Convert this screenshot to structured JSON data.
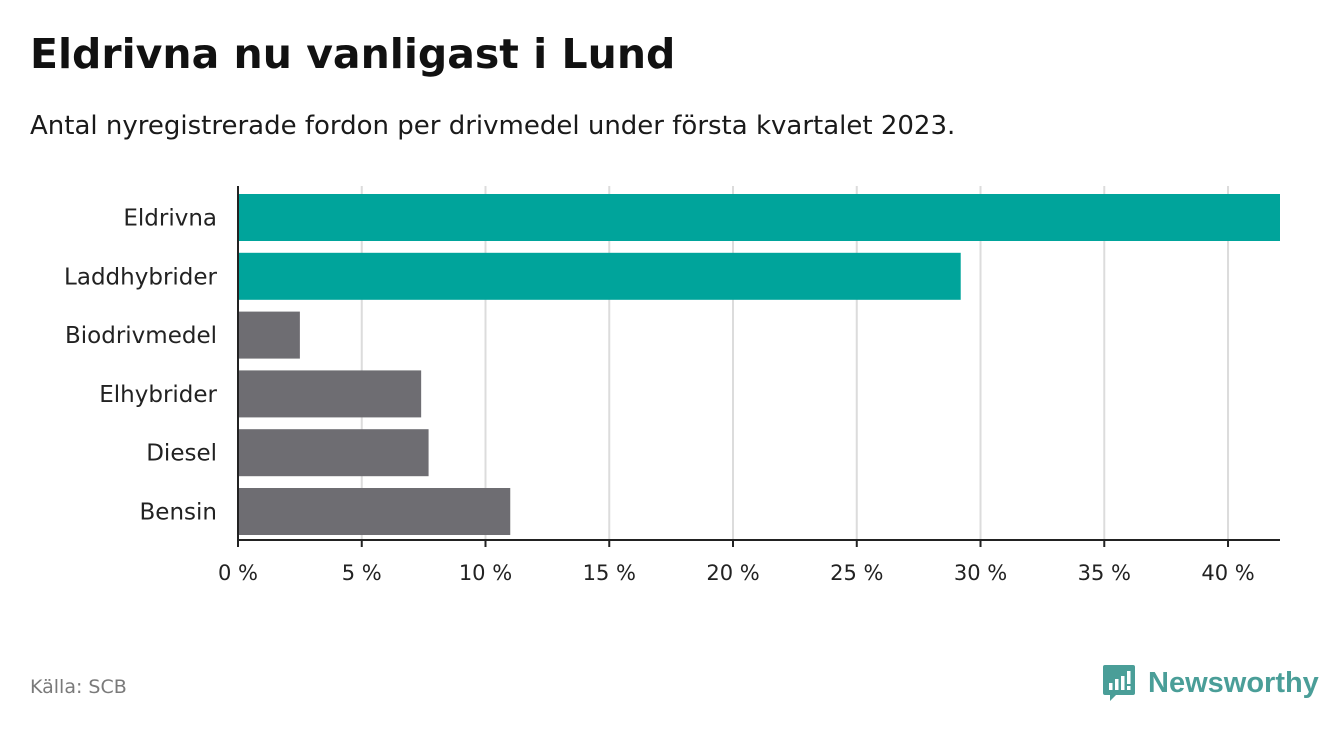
{
  "header": {
    "title": "Eldrivna nu vanligast i Lund",
    "subtitle": "Antal nyregistrerade fordon per drivmedel under första kvartalet 2023."
  },
  "footer": {
    "source": "Källa: SCB",
    "brand": "Newsworthy"
  },
  "colors": {
    "highlight": "#00a49b",
    "default": "#6e6d72",
    "grid": "#dcdcdc",
    "brand": "#4a9e98"
  },
  "chart_data": {
    "type": "bar",
    "orientation": "horizontal",
    "title": "Eldrivna nu vanligast i Lund",
    "subtitle": "Antal nyregistrerade fordon per drivmedel under första kvartalet 2023.",
    "categories": [
      "Eldrivna",
      "Laddhybrider",
      "Biodrivmedel",
      "Elhybrider",
      "Diesel",
      "Bensin"
    ],
    "values": [
      42.1,
      29.2,
      2.5,
      7.4,
      7.7,
      11.0
    ],
    "highlighted": [
      true,
      true,
      false,
      false,
      false,
      false
    ],
    "xlim": [
      0,
      42.1
    ],
    "xticks": [
      0,
      5,
      10,
      15,
      20,
      25,
      30,
      35,
      40
    ],
    "xtick_labels": [
      "0 %",
      "5 %",
      "10 %",
      "15 %",
      "20 %",
      "25 %",
      "30 %",
      "35 %",
      "40 %"
    ],
    "grid": "vertical",
    "xlabel": "",
    "ylabel": ""
  }
}
